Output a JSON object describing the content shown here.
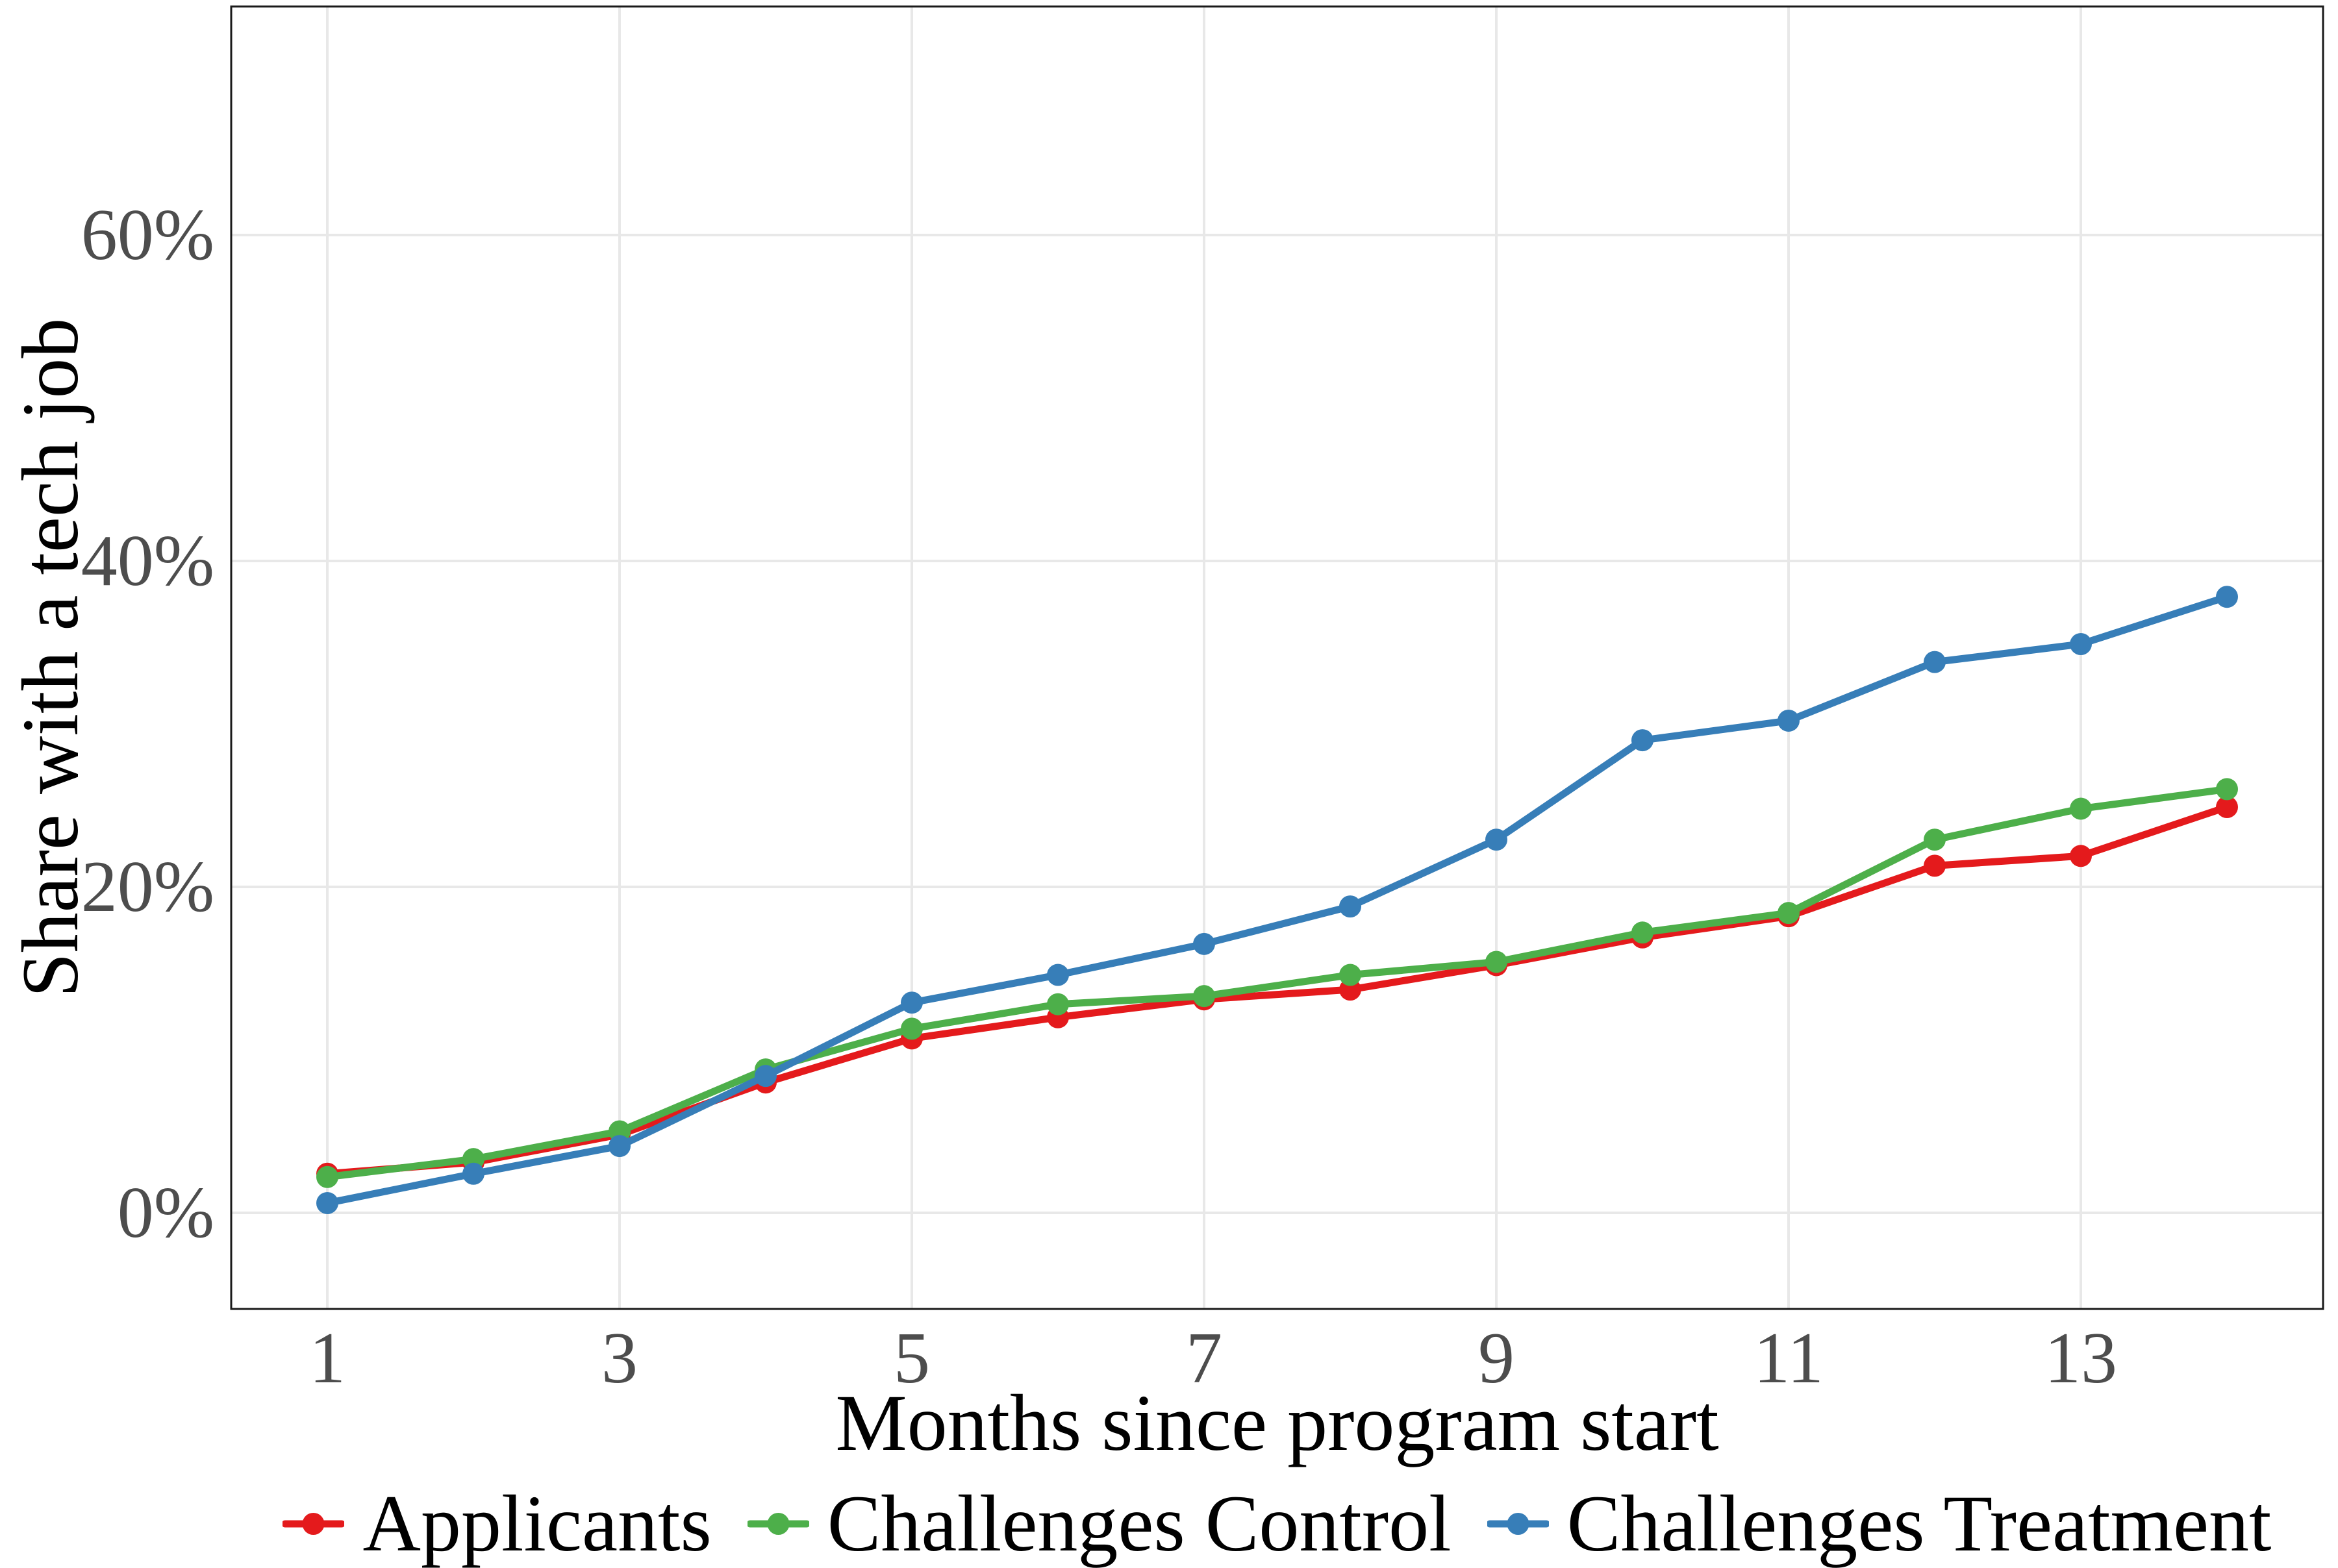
{
  "chart_data": {
    "type": "line",
    "title": "",
    "xlabel": "Months since program start",
    "ylabel": "Share with a tech job",
    "x": [
      1,
      2,
      3,
      4,
      5,
      6,
      7,
      8,
      9,
      10,
      11,
      12,
      13,
      14
    ],
    "x_ticks": [
      1,
      3,
      5,
      7,
      9,
      11,
      13
    ],
    "x_tick_labels": [
      "1",
      "3",
      "5",
      "7",
      "9",
      "11",
      "13"
    ],
    "y_ticks": [
      0,
      20,
      40,
      60
    ],
    "y_tick_labels": [
      "0%",
      "20%",
      "40%",
      "60%"
    ],
    "xlim": [
      0.35,
      14.65
    ],
    "ylim": [
      -5.9,
      74
    ],
    "grid": "major-only",
    "legend_position": "bottom",
    "series": [
      {
        "name": "Applicants",
        "color": "#e41a1c",
        "values": [
          2.4,
          3.1,
          4.8,
          8.0,
          10.7,
          12.0,
          13.1,
          13.7,
          15.2,
          16.9,
          18.2,
          21.3,
          21.9,
          24.9
        ]
      },
      {
        "name": "Challenges Control",
        "color": "#4daf4a",
        "values": [
          2.2,
          3.3,
          5.0,
          8.8,
          11.3,
          12.8,
          13.3,
          14.6,
          15.4,
          17.2,
          18.4,
          22.9,
          24.8,
          26.0
        ]
      },
      {
        "name": "Challenges Treatment",
        "color": "#377eb8",
        "values": [
          0.6,
          2.4,
          4.1,
          8.4,
          12.9,
          14.6,
          16.5,
          18.8,
          22.9,
          29.0,
          30.2,
          33.8,
          34.9,
          37.8
        ]
      }
    ]
  },
  "colors": {
    "background": "#ffffff",
    "panel_border": "#1a1a1a",
    "gridline": "#e8e8e8",
    "axis_text": "#4d4d4d",
    "axis_title": "#000000"
  }
}
